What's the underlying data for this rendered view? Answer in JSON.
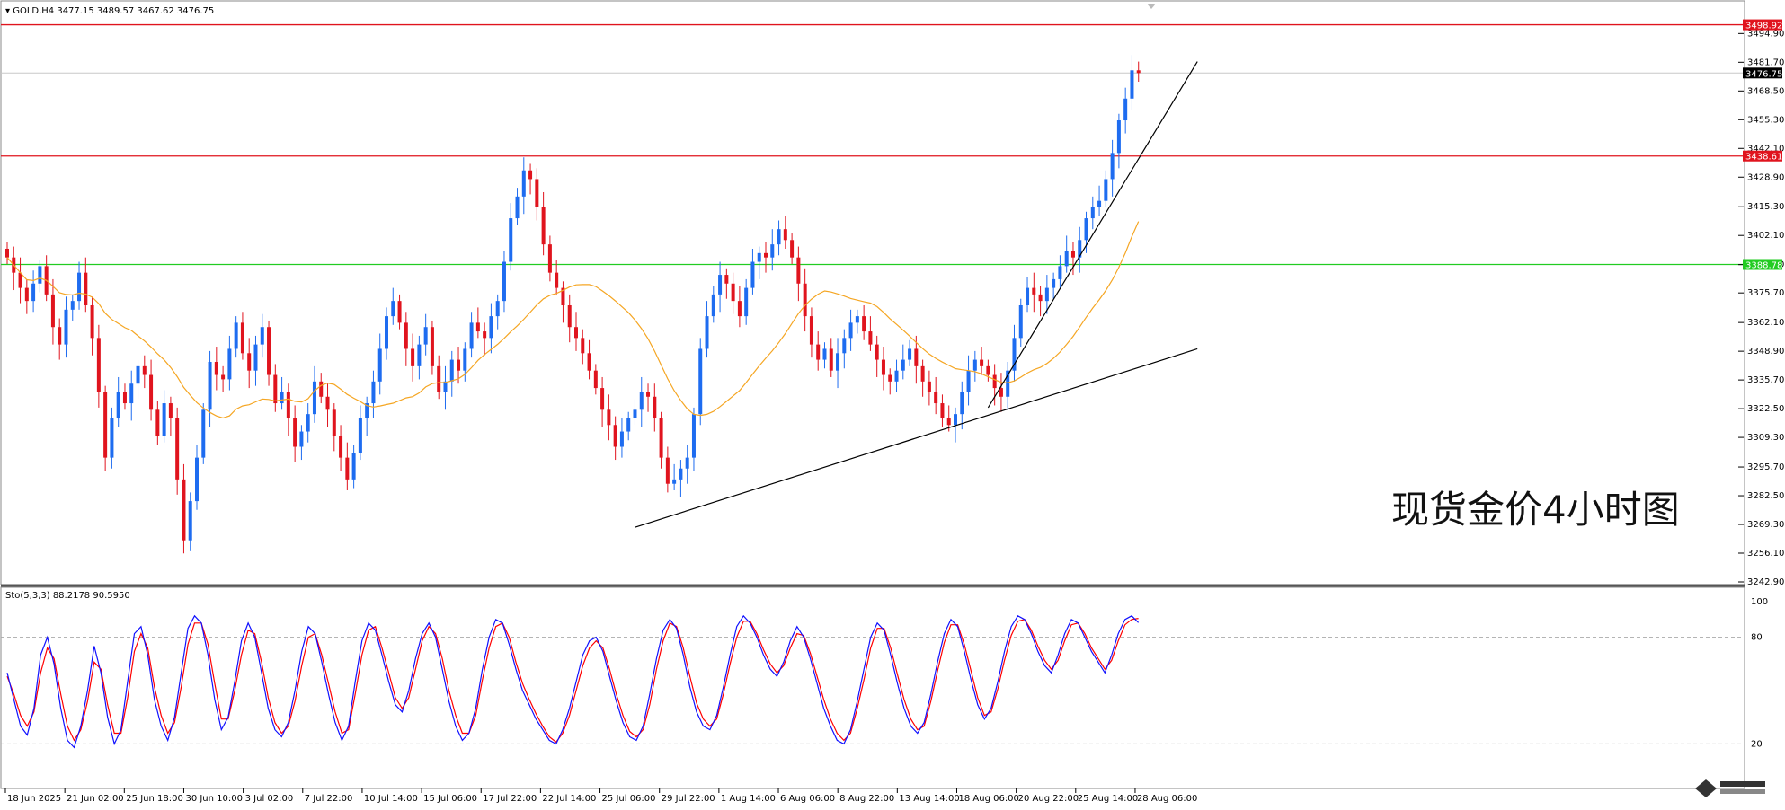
{
  "header": {
    "symbol_line": "▾ GOLD,H4  3477.15 3489.57 3467.62 3476.75",
    "indicator_line": "Sto(5,3,3) 88.2178 90.5950"
  },
  "watermark": "现货金价4小时图",
  "colors": {
    "bull": "#1e6cf0",
    "bear": "#e0141e",
    "ma": "#f5a623",
    "resistance": "#e0141e",
    "support": "#22cc22",
    "trendline": "#000000",
    "sto_main": "#1010ff",
    "sto_signal": "#ff0000",
    "current_price_tag": "#000000"
  },
  "chart_data": [
    {
      "type": "candlestick",
      "symbol": "GOLD",
      "timeframe": "H4",
      "ylim": [
        3242.9,
        3507
      ],
      "y_ticks": [
        3494.9,
        3481.7,
        3468.5,
        3455.3,
        3442.1,
        3428.9,
        3415.3,
        3402.1,
        3388.7,
        3375.7,
        3362.1,
        3348.9,
        3335.7,
        3322.5,
        3309.3,
        3295.7,
        3282.5,
        3269.3,
        3256.1,
        3242.9
      ],
      "x_labels": [
        "18 Jun 2025",
        "21 Jun 02:00",
        "25 Jun 18:00",
        "30 Jun 10:00",
        "3 Jul 02:00",
        "7 Jul 22:00",
        "10 Jul 14:00",
        "15 Jul 06:00",
        "17 Jul 22:00",
        "22 Jul 14:00",
        "25 Jul 06:00",
        "29 Jul 22:00",
        "1 Aug 14:00",
        "6 Aug 06:00",
        "8 Aug 22:00",
        "13 Aug 14:00",
        "18 Aug 06:00",
        "20 Aug 22:00",
        "25 Aug 14:00",
        "28 Aug 06:00"
      ],
      "price_levels": [
        {
          "label": "3498.92",
          "value": 3498.92,
          "color": "#e0141e"
        },
        {
          "label": "3438.61",
          "value": 3438.61,
          "color": "#e0141e"
        },
        {
          "label": "3388.78",
          "value": 3388.78,
          "color": "#22cc22"
        }
      ],
      "current_price": {
        "label": "3476.75",
        "value": 3476.75
      },
      "closes": [
        3392,
        3385,
        3378,
        3372,
        3380,
        3388,
        3375,
        3360,
        3352,
        3368,
        3372,
        3385,
        3370,
        3355,
        3330,
        3300,
        3318,
        3330,
        3325,
        3334,
        3342,
        3338,
        3322,
        3310,
        3325,
        3318,
        3290,
        3262,
        3280,
        3300,
        3322,
        3344,
        3338,
        3336,
        3350,
        3362,
        3348,
        3340,
        3352,
        3360,
        3338,
        3325,
        3330,
        3318,
        3305,
        3312,
        3320,
        3335,
        3328,
        3322,
        3310,
        3300,
        3290,
        3302,
        3318,
        3325,
        3335,
        3350,
        3365,
        3372,
        3362,
        3350,
        3342,
        3352,
        3360,
        3342,
        3330,
        3335,
        3345,
        3340,
        3350,
        3362,
        3358,
        3355,
        3365,
        3372,
        3390,
        3410,
        3420,
        3432,
        3428,
        3415,
        3398,
        3385,
        3378,
        3370,
        3360,
        3355,
        3348,
        3340,
        3332,
        3322,
        3315,
        3305,
        3312,
        3318,
        3322,
        3330,
        3328,
        3318,
        3300,
        3288,
        3290,
        3295,
        3300,
        3320,
        3350,
        3365,
        3375,
        3384,
        3380,
        3372,
        3365,
        3378,
        3390,
        3394,
        3392,
        3398,
        3405,
        3400,
        3392,
        3380,
        3365,
        3352,
        3345,
        3350,
        3340,
        3348,
        3355,
        3362,
        3365,
        3358,
        3352,
        3345,
        3338,
        3335,
        3340,
        3345,
        3350,
        3342,
        3335,
        3330,
        3325,
        3318,
        3315,
        3320,
        3330,
        3340,
        3345,
        3342,
        3338,
        3332,
        3328,
        3340,
        3355,
        3370,
        3378,
        3375,
        3372,
        3378,
        3382,
        3388,
        3395,
        3392,
        3400,
        3410,
        3415,
        3418,
        3428,
        3440,
        3455,
        3465,
        3478,
        3476.75
      ],
      "ma_period": 20
    },
    {
      "type": "line",
      "title": "Sto(5,3,3)",
      "ylim": [
        0,
        100
      ],
      "y_ticks": [
        100,
        80,
        20
      ],
      "series": [
        {
          "name": "Sto(5,3,3)",
          "values": [
            60,
            45,
            30,
            25,
            40,
            70,
            80,
            65,
            40,
            22,
            18,
            30,
            50,
            75,
            60,
            35,
            20,
            28,
            55,
            82,
            86,
            70,
            45,
            30,
            22,
            35,
            60,
            85,
            92,
            88,
            70,
            45,
            28,
            35,
            55,
            78,
            88,
            80,
            60,
            40,
            28,
            24,
            32,
            50,
            72,
            86,
            82,
            66,
            48,
            32,
            22,
            30,
            55,
            78,
            88,
            84,
            70,
            55,
            42,
            38,
            50,
            68,
            82,
            88,
            80,
            62,
            44,
            30,
            22,
            26,
            40,
            62,
            80,
            90,
            88,
            76,
            62,
            50,
            42,
            34,
            28,
            22,
            20,
            28,
            40,
            55,
            70,
            78,
            80,
            72,
            58,
            44,
            32,
            24,
            22,
            30,
            48,
            68,
            84,
            90,
            85,
            70,
            52,
            38,
            30,
            28,
            36,
            52,
            70,
            86,
            92,
            88,
            80,
            70,
            62,
            58,
            66,
            78,
            86,
            80,
            68,
            54,
            40,
            30,
            22,
            20,
            28,
            44,
            62,
            80,
            88,
            84,
            70,
            54,
            40,
            30,
            26,
            32,
            48,
            66,
            82,
            90,
            86,
            72,
            56,
            42,
            34,
            40,
            55,
            72,
            86,
            92,
            90,
            82,
            72,
            64,
            60,
            70,
            82,
            90,
            88,
            80,
            72,
            66,
            60,
            70,
            82,
            90,
            92,
            88.22
          ]
        },
        {
          "name": "Signal",
          "values": [
            58,
            48,
            36,
            30,
            38,
            60,
            74,
            68,
            48,
            30,
            22,
            28,
            44,
            66,
            62,
            42,
            26,
            26,
            46,
            72,
            82,
            74,
            52,
            36,
            26,
            32,
            52,
            76,
            88,
            88,
            76,
            54,
            34,
            34,
            50,
            70,
            84,
            82,
            66,
            46,
            32,
            26,
            30,
            44,
            64,
            80,
            82,
            70,
            54,
            38,
            26,
            28,
            48,
            70,
            84,
            86,
            74,
            60,
            46,
            40,
            46,
            62,
            78,
            86,
            82,
            68,
            50,
            36,
            26,
            26,
            36,
            56,
            74,
            86,
            88,
            80,
            66,
            54,
            45,
            37,
            30,
            24,
            21,
            26,
            36,
            50,
            64,
            74,
            78,
            74,
            62,
            48,
            36,
            27,
            24,
            28,
            42,
            62,
            78,
            88,
            86,
            74,
            58,
            43,
            34,
            30,
            34,
            48,
            65,
            80,
            89,
            89,
            82,
            73,
            65,
            60,
            64,
            74,
            82,
            81,
            71,
            58,
            45,
            34,
            26,
            22,
            26,
            40,
            56,
            74,
            85,
            85,
            74,
            59,
            45,
            34,
            28,
            30,
            44,
            61,
            77,
            87,
            87,
            76,
            61,
            46,
            36,
            38,
            51,
            67,
            81,
            89,
            90,
            84,
            75,
            67,
            62,
            67,
            78,
            87,
            88,
            82,
            74,
            68,
            62,
            67,
            78,
            87,
            90,
            90.6
          ]
        }
      ]
    }
  ]
}
